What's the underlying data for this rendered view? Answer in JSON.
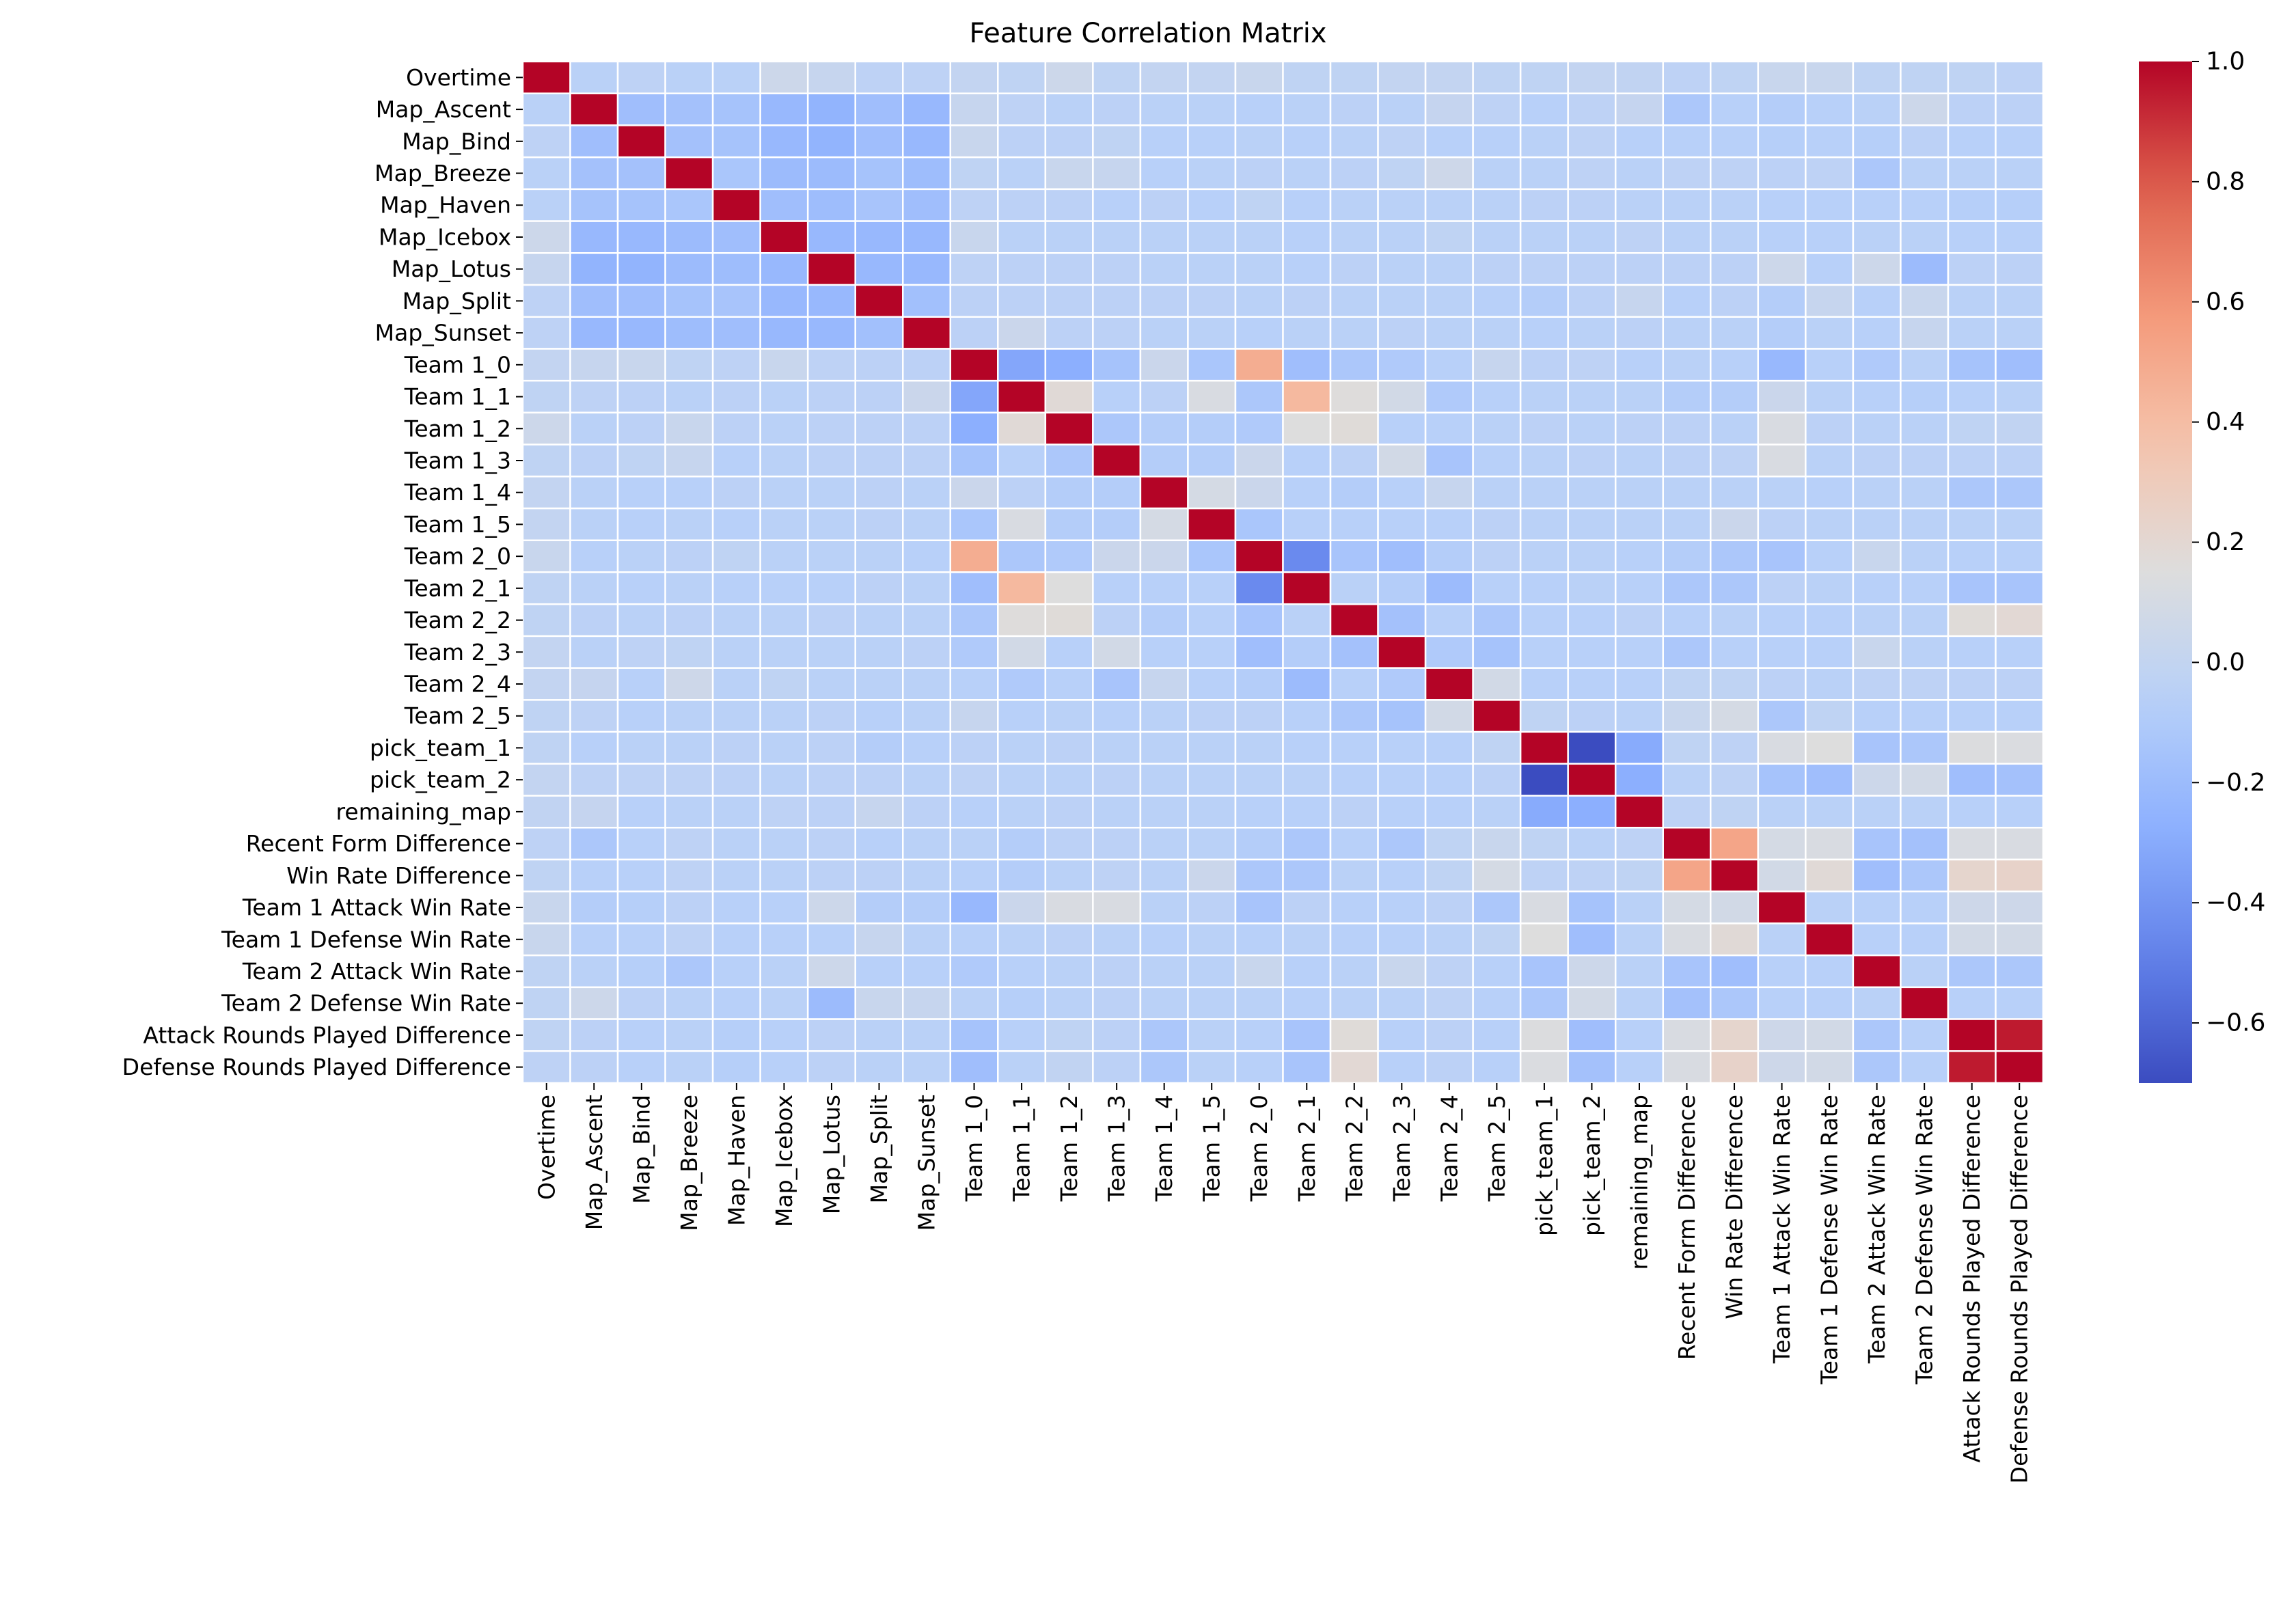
{
  "chart_data": {
    "type": "heatmap",
    "title": "Feature Correlation Matrix",
    "xlabel": "",
    "ylabel": "",
    "colormap": "coolwarm",
    "value_range": [
      -0.7,
      1.0
    ],
    "grid": true,
    "legend": "colorbar-right",
    "colorbar_ticks": [
      1.0,
      0.8,
      0.6,
      0.4,
      0.2,
      0.0,
      -0.2,
      -0.4,
      -0.6
    ],
    "colorbar_tick_labels": [
      "1.0",
      "0.8",
      "0.6",
      "0.4",
      "0.2",
      "0.0",
      "−0.2",
      "−0.4",
      "−0.6"
    ],
    "labels": [
      "Overtime",
      "Map_Ascent",
      "Map_Bind",
      "Map_Breeze",
      "Map_Haven",
      "Map_Icebox",
      "Map_Lotus",
      "Map_Split",
      "Map_Sunset",
      "Team 1_0",
      "Team 1_1",
      "Team 1_2",
      "Team 1_3",
      "Team 1_4",
      "Team 1_5",
      "Team 2_0",
      "Team 2_1",
      "Team 2_2",
      "Team 2_3",
      "Team 2_4",
      "Team 2_5",
      "pick_team_1",
      "pick_team_2",
      "remaining_map",
      "Recent Form Difference",
      "Win Rate Difference",
      "Team 1 Attack Win Rate",
      "Team 1 Defense Win Rate",
      "Team 2 Attack Win Rate",
      "Team 2 Defense Win Rate",
      "Attack Rounds Played Difference",
      "Defense Rounds Played Difference"
    ],
    "matrix": [
      [
        1,
        -0.05,
        -0.03,
        -0.05,
        -0.05,
        0.05,
        0.02,
        -0.03,
        -0.03,
        0,
        -0.02,
        0.05,
        -0.02,
        0,
        0,
        0.03,
        -0.02,
        -0.02,
        0,
        0,
        -0.02,
        -0.02,
        0,
        -0.01,
        -0.03,
        -0.02,
        0.03,
        0.03,
        -0.02,
        -0.02,
        -0.02,
        -0.03
      ],
      [
        -0.05,
        1,
        -0.18,
        -0.16,
        -0.15,
        -0.22,
        -0.25,
        -0.18,
        -0.22,
        0.02,
        -0.03,
        -0.05,
        -0.04,
        -0.05,
        -0.05,
        -0.06,
        -0.05,
        -0.04,
        -0.05,
        0.01,
        -0.03,
        -0.06,
        -0.03,
        0.01,
        -0.12,
        -0.06,
        -0.08,
        -0.06,
        -0.05,
        0.05,
        -0.04,
        -0.04
      ],
      [
        -0.03,
        -0.18,
        1,
        -0.16,
        -0.15,
        -0.22,
        -0.25,
        -0.18,
        -0.22,
        0.03,
        -0.04,
        -0.04,
        -0.02,
        -0.06,
        -0.06,
        -0.05,
        -0.06,
        -0.05,
        -0.03,
        -0.06,
        -0.06,
        -0.05,
        -0.03,
        -0.06,
        -0.06,
        -0.06,
        -0.07,
        -0.06,
        -0.07,
        -0.04,
        -0.06,
        -0.06
      ],
      [
        -0.05,
        -0.16,
        -0.16,
        1,
        -0.13,
        -0.2,
        -0.2,
        -0.15,
        -0.19,
        -0.02,
        -0.05,
        0.03,
        0.02,
        -0.06,
        -0.05,
        -0.04,
        -0.05,
        -0.04,
        -0.02,
        0.06,
        -0.05,
        -0.05,
        -0.03,
        -0.05,
        -0.03,
        -0.03,
        -0.04,
        -0.03,
        -0.12,
        -0.05,
        -0.05,
        -0.05
      ],
      [
        -0.05,
        -0.15,
        -0.15,
        -0.13,
        1,
        -0.18,
        -0.19,
        -0.14,
        -0.18,
        -0.03,
        -0.04,
        -0.04,
        -0.06,
        -0.04,
        -0.06,
        -0.02,
        -0.06,
        -0.05,
        -0.05,
        -0.05,
        -0.05,
        -0.04,
        -0.04,
        -0.05,
        -0.05,
        -0.05,
        -0.06,
        -0.06,
        -0.06,
        -0.06,
        -0.07,
        -0.07
      ],
      [
        0.05,
        -0.22,
        -0.22,
        -0.2,
        -0.18,
        1,
        -0.22,
        -0.22,
        -0.22,
        0.03,
        -0.05,
        -0.05,
        -0.05,
        -0.05,
        -0.05,
        -0.05,
        -0.06,
        -0.05,
        -0.05,
        -0.02,
        -0.05,
        -0.05,
        -0.05,
        -0.03,
        -0.05,
        -0.05,
        -0.06,
        -0.06,
        -0.05,
        -0.05,
        -0.06,
        -0.06
      ],
      [
        0.02,
        -0.25,
        -0.25,
        -0.2,
        -0.19,
        -0.22,
        1,
        -0.22,
        -0.22,
        -0.03,
        -0.04,
        -0.04,
        -0.04,
        -0.05,
        -0.05,
        -0.05,
        -0.06,
        -0.04,
        -0.05,
        -0.05,
        -0.04,
        -0.04,
        -0.04,
        -0.04,
        -0.04,
        -0.04,
        0.05,
        -0.06,
        0.05,
        -0.2,
        -0.04,
        -0.04
      ],
      [
        -0.03,
        -0.18,
        -0.18,
        -0.15,
        -0.14,
        -0.22,
        -0.22,
        1,
        -0.17,
        -0.04,
        -0.04,
        -0.04,
        -0.04,
        -0.04,
        -0.04,
        -0.05,
        -0.04,
        -0.05,
        -0.05,
        -0.05,
        -0.06,
        -0.08,
        -0.04,
        0.02,
        -0.06,
        -0.04,
        -0.08,
        0.02,
        -0.06,
        0.03,
        -0.05,
        -0.05
      ],
      [
        -0.03,
        -0.22,
        -0.22,
        -0.19,
        -0.18,
        -0.22,
        -0.22,
        -0.17,
        1,
        -0.04,
        0.04,
        -0.04,
        -0.04,
        -0.05,
        -0.05,
        -0.06,
        -0.05,
        -0.05,
        -0.04,
        -0.05,
        -0.05,
        -0.06,
        -0.05,
        -0.04,
        -0.05,
        -0.05,
        -0.08,
        -0.05,
        -0.06,
        0.02,
        -0.05,
        -0.05
      ],
      [
        0,
        0.02,
        0.03,
        -0.02,
        -0.03,
        0.03,
        -0.03,
        -0.04,
        -0.04,
        1,
        -0.32,
        -0.28,
        -0.15,
        0.04,
        -0.13,
        0.48,
        -0.18,
        -0.12,
        -0.1,
        -0.06,
        0.02,
        -0.04,
        -0.03,
        -0.06,
        -0.05,
        -0.06,
        -0.22,
        -0.06,
        -0.1,
        -0.05,
        -0.15,
        -0.18
      ],
      [
        -0.02,
        -0.03,
        -0.04,
        -0.05,
        -0.04,
        -0.05,
        -0.04,
        -0.04,
        0.04,
        -0.32,
        1,
        0.18,
        -0.06,
        -0.04,
        0.12,
        -0.12,
        0.42,
        0.16,
        0.08,
        -0.1,
        -0.06,
        -0.05,
        -0.05,
        -0.05,
        -0.08,
        -0.08,
        0.04,
        -0.05,
        -0.06,
        -0.07,
        -0.06,
        -0.05
      ],
      [
        0.05,
        -0.05,
        -0.04,
        0.03,
        -0.04,
        -0.05,
        -0.04,
        -0.04,
        -0.04,
        -0.28,
        0.18,
        1,
        -0.12,
        -0.08,
        -0.08,
        -0.1,
        0.15,
        0.17,
        -0.06,
        -0.06,
        -0.05,
        -0.04,
        -0.05,
        -0.04,
        -0.04,
        -0.05,
        0.12,
        -0.04,
        -0.05,
        -0.05,
        -0.02,
        -0.01
      ],
      [
        -0.02,
        -0.04,
        -0.02,
        0.02,
        -0.06,
        -0.05,
        -0.04,
        -0.04,
        -0.04,
        -0.15,
        -0.06,
        -0.12,
        1,
        -0.08,
        -0.08,
        0.04,
        -0.06,
        -0.04,
        0.08,
        -0.14,
        -0.06,
        -0.05,
        -0.04,
        -0.05,
        -0.04,
        -0.03,
        0.12,
        -0.05,
        -0.04,
        -0.04,
        -0.04,
        -0.04
      ],
      [
        0,
        -0.05,
        -0.06,
        -0.06,
        -0.04,
        -0.05,
        -0.05,
        -0.04,
        -0.05,
        0.04,
        -0.04,
        -0.08,
        -0.08,
        1,
        0.1,
        0.04,
        -0.06,
        -0.08,
        -0.06,
        0.02,
        -0.05,
        -0.05,
        -0.05,
        -0.05,
        -0.05,
        -0.05,
        -0.05,
        -0.06,
        -0.05,
        -0.05,
        -0.12,
        -0.12
      ],
      [
        0,
        -0.05,
        -0.06,
        -0.05,
        -0.06,
        -0.05,
        -0.05,
        -0.04,
        -0.05,
        -0.13,
        0.12,
        -0.08,
        -0.08,
        0.1,
        1,
        -0.13,
        -0.06,
        -0.06,
        -0.06,
        -0.06,
        -0.04,
        -0.05,
        -0.05,
        -0.05,
        -0.05,
        0.04,
        -0.04,
        -0.05,
        -0.05,
        -0.05,
        -0.05,
        -0.05
      ],
      [
        0.03,
        -0.06,
        -0.05,
        -0.04,
        -0.02,
        -0.05,
        -0.05,
        -0.05,
        -0.06,
        0.48,
        -0.12,
        -0.1,
        0.04,
        0.04,
        -0.13,
        1,
        -0.45,
        -0.14,
        -0.18,
        -0.08,
        -0.04,
        -0.05,
        -0.05,
        -0.06,
        -0.08,
        -0.12,
        -0.14,
        -0.06,
        0.03,
        -0.05,
        -0.06,
        -0.06
      ],
      [
        -0.02,
        -0.05,
        -0.06,
        -0.05,
        -0.06,
        -0.06,
        -0.06,
        -0.04,
        -0.05,
        -0.18,
        0.42,
        0.15,
        -0.06,
        -0.06,
        -0.06,
        -0.45,
        1,
        -0.05,
        -0.08,
        -0.2,
        -0.06,
        -0.06,
        -0.05,
        -0.06,
        -0.12,
        -0.12,
        -0.04,
        -0.05,
        -0.06,
        -0.06,
        -0.14,
        -0.14
      ],
      [
        -0.02,
        -0.04,
        -0.05,
        -0.04,
        -0.05,
        -0.05,
        -0.04,
        -0.05,
        -0.05,
        -0.12,
        0.16,
        0.17,
        -0.04,
        -0.08,
        -0.06,
        -0.14,
        -0.05,
        1,
        -0.16,
        -0.06,
        -0.12,
        -0.06,
        -0.06,
        -0.04,
        -0.06,
        -0.05,
        -0.06,
        -0.06,
        -0.05,
        -0.05,
        0.17,
        0.19
      ],
      [
        0,
        -0.05,
        -0.03,
        -0.02,
        -0.05,
        -0.05,
        -0.05,
        -0.05,
        -0.04,
        -0.1,
        0.08,
        -0.06,
        0.08,
        -0.06,
        -0.06,
        -0.18,
        -0.08,
        -0.16,
        1,
        -0.1,
        -0.15,
        -0.06,
        -0.06,
        -0.06,
        -0.12,
        -0.06,
        -0.06,
        -0.06,
        0.03,
        -0.05,
        -0.06,
        -0.06
      ],
      [
        0,
        0.01,
        -0.06,
        0.06,
        -0.05,
        -0.02,
        -0.05,
        -0.05,
        -0.05,
        -0.06,
        -0.1,
        -0.06,
        -0.14,
        0.02,
        -0.06,
        -0.08,
        -0.2,
        -0.06,
        -0.1,
        1,
        0.08,
        -0.06,
        -0.06,
        -0.06,
        -0.02,
        -0.02,
        -0.04,
        -0.05,
        -0.03,
        -0.03,
        -0.04,
        -0.04
      ],
      [
        -0.02,
        -0.03,
        -0.06,
        -0.05,
        -0.05,
        -0.05,
        -0.04,
        -0.06,
        -0.05,
        0.02,
        -0.06,
        -0.05,
        -0.06,
        -0.05,
        -0.04,
        -0.04,
        -0.06,
        -0.12,
        -0.15,
        0.08,
        1,
        -0.02,
        -0.04,
        -0.05,
        0.03,
        0.1,
        -0.12,
        -0.02,
        -0.06,
        -0.06,
        -0.06,
        -0.06
      ],
      [
        -0.02,
        -0.06,
        -0.05,
        -0.05,
        -0.04,
        -0.05,
        -0.04,
        -0.08,
        -0.06,
        -0.04,
        -0.05,
        -0.04,
        -0.05,
        -0.05,
        -0.05,
        -0.05,
        -0.06,
        -0.06,
        -0.06,
        -0.06,
        -0.02,
        1,
        -0.7,
        -0.3,
        -0.02,
        -0.03,
        0.12,
        0.15,
        -0.14,
        -0.12,
        0.14,
        0.13
      ],
      [
        0,
        -0.03,
        -0.03,
        -0.03,
        -0.04,
        -0.05,
        -0.04,
        -0.04,
        -0.05,
        -0.03,
        -0.05,
        -0.05,
        -0.04,
        -0.05,
        -0.05,
        -0.05,
        -0.05,
        -0.06,
        -0.06,
        -0.06,
        -0.04,
        -0.7,
        1,
        -0.28,
        -0.05,
        -0.03,
        -0.15,
        -0.18,
        0.05,
        0.08,
        -0.18,
        -0.16
      ],
      [
        -0.01,
        0.01,
        -0.06,
        -0.05,
        -0.05,
        -0.03,
        -0.04,
        0.02,
        -0.04,
        -0.06,
        -0.05,
        -0.04,
        -0.05,
        -0.05,
        -0.05,
        -0.06,
        -0.06,
        -0.04,
        -0.06,
        -0.06,
        -0.05,
        -0.3,
        -0.28,
        1,
        -0.03,
        -0.02,
        -0.05,
        -0.05,
        -0.05,
        -0.05,
        -0.06,
        -0.06
      ],
      [
        -0.03,
        -0.12,
        -0.06,
        -0.03,
        -0.05,
        -0.05,
        -0.04,
        -0.06,
        -0.05,
        -0.05,
        -0.08,
        -0.04,
        -0.04,
        -0.05,
        -0.05,
        -0.08,
        -0.12,
        -0.06,
        -0.12,
        -0.02,
        0.03,
        -0.02,
        -0.05,
        -0.03,
        1,
        0.52,
        0.1,
        0.12,
        -0.14,
        -0.16,
        0.12,
        0.12
      ],
      [
        -0.02,
        -0.06,
        -0.06,
        -0.03,
        -0.05,
        -0.05,
        -0.04,
        -0.04,
        -0.05,
        -0.06,
        -0.08,
        -0.05,
        -0.03,
        -0.05,
        0.04,
        -0.12,
        -0.12,
        -0.05,
        -0.06,
        -0.02,
        0.1,
        -0.03,
        -0.03,
        -0.02,
        0.52,
        1,
        0.08,
        0.18,
        -0.18,
        -0.12,
        0.22,
        0.24
      ],
      [
        0.03,
        -0.08,
        -0.07,
        -0.04,
        -0.06,
        -0.06,
        0.05,
        -0.08,
        -0.08,
        -0.22,
        0.04,
        0.12,
        0.12,
        -0.05,
        -0.04,
        -0.14,
        -0.04,
        -0.06,
        -0.06,
        -0.04,
        -0.12,
        0.12,
        -0.15,
        -0.05,
        0.1,
        0.08,
        1,
        -0.05,
        -0.06,
        -0.06,
        0.06,
        0.06
      ],
      [
        0.03,
        -0.06,
        -0.06,
        -0.03,
        -0.06,
        -0.06,
        -0.06,
        0.02,
        -0.05,
        -0.06,
        -0.05,
        -0.04,
        -0.05,
        -0.06,
        -0.05,
        -0.06,
        -0.05,
        -0.06,
        -0.06,
        -0.05,
        -0.02,
        0.15,
        -0.18,
        -0.05,
        0.12,
        0.18,
        -0.05,
        1,
        -0.06,
        -0.06,
        0.08,
        0.08
      ],
      [
        -0.02,
        -0.05,
        -0.07,
        -0.12,
        -0.06,
        -0.05,
        0.05,
        -0.06,
        -0.06,
        -0.1,
        -0.06,
        -0.05,
        -0.04,
        -0.05,
        -0.05,
        0.03,
        -0.06,
        -0.05,
        0.03,
        -0.03,
        -0.06,
        -0.14,
        0.05,
        -0.05,
        -0.14,
        -0.18,
        -0.06,
        -0.06,
        1,
        -0.05,
        -0.12,
        -0.12
      ],
      [
        -0.02,
        0.05,
        -0.04,
        -0.05,
        -0.06,
        -0.05,
        -0.2,
        0.03,
        0.02,
        -0.05,
        -0.07,
        -0.05,
        -0.04,
        -0.05,
        -0.05,
        -0.05,
        -0.06,
        -0.05,
        -0.05,
        -0.03,
        -0.06,
        -0.12,
        0.08,
        -0.05,
        -0.16,
        -0.12,
        -0.06,
        -0.06,
        -0.05,
        1,
        -0.06,
        -0.06
      ],
      [
        -0.02,
        -0.04,
        -0.06,
        -0.05,
        -0.07,
        -0.06,
        -0.04,
        -0.05,
        -0.05,
        -0.15,
        -0.06,
        -0.02,
        -0.04,
        -0.12,
        -0.05,
        -0.06,
        -0.14,
        0.17,
        -0.06,
        -0.04,
        -0.06,
        0.14,
        -0.18,
        -0.06,
        0.12,
        0.22,
        0.06,
        0.08,
        -0.12,
        -0.06,
        1,
        0.95
      ],
      [
        -0.03,
        -0.04,
        -0.06,
        -0.05,
        -0.07,
        -0.06,
        -0.04,
        -0.05,
        -0.05,
        -0.18,
        -0.05,
        -0.01,
        -0.04,
        -0.12,
        -0.05,
        -0.06,
        -0.14,
        0.19,
        -0.06,
        -0.04,
        -0.06,
        0.13,
        -0.16,
        -0.06,
        0.12,
        0.24,
        0.06,
        0.08,
        -0.12,
        -0.06,
        0.95,
        1
      ]
    ]
  }
}
